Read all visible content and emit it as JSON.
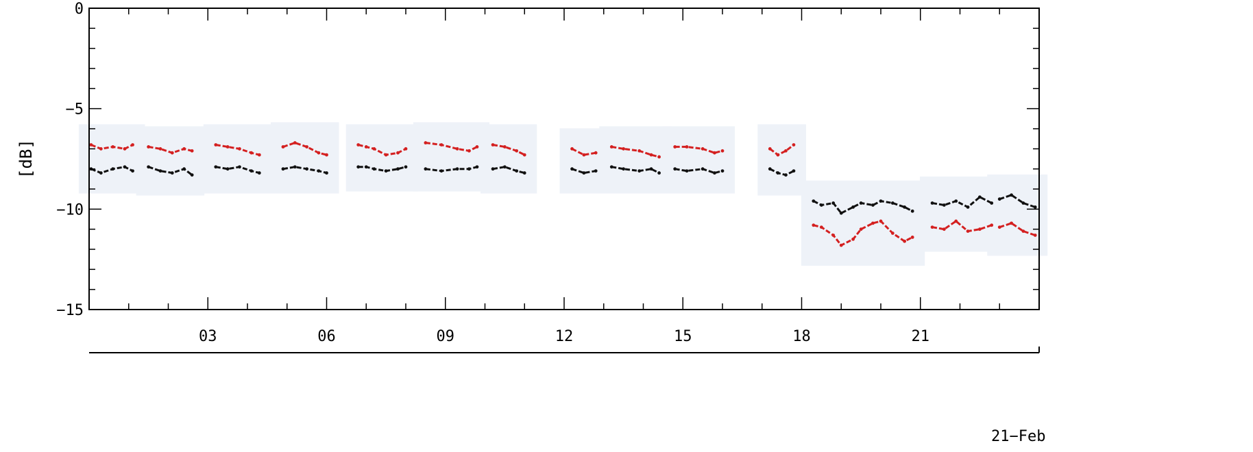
{
  "chart_data": {
    "type": "scatter",
    "title": "",
    "xlabel": "",
    "ylabel": "[dB]",
    "date_label": "21−Feb",
    "xlim": [
      0,
      24
    ],
    "ylim": [
      -15,
      0
    ],
    "x_ticks": [
      {
        "x": 3,
        "label": "03"
      },
      {
        "x": 6,
        "label": "06"
      },
      {
        "x": 9,
        "label": "09"
      },
      {
        "x": 12,
        "label": "12"
      },
      {
        "x": 15,
        "label": "15"
      },
      {
        "x": 18,
        "label": "18"
      },
      {
        "x": 21,
        "label": "21"
      }
    ],
    "y_ticks": [
      {
        "y": 0,
        "label": "0"
      },
      {
        "y": -5,
        "label": "−5"
      },
      {
        "y": -10,
        "label": "−10"
      },
      {
        "y": -15,
        "label": "−15"
      }
    ],
    "grid": false,
    "colors": {
      "red": "#d42020",
      "black": "#111111"
    },
    "series": [
      {
        "color": "#d42020",
        "segments": [
          {
            "x": [
              0.05,
              0.3,
              0.6,
              0.9,
              1.1
            ],
            "y": [
              -6.8,
              -7.0,
              -6.9,
              -7.0,
              -6.8
            ]
          },
          {
            "x": [
              1.5,
              1.8,
              2.1,
              2.4,
              2.6
            ],
            "y": [
              -6.9,
              -7.0,
              -7.2,
              -7.0,
              -7.1
            ]
          },
          {
            "x": [
              3.2,
              3.5,
              3.8,
              4.1,
              4.3
            ],
            "y": [
              -6.8,
              -6.9,
              -7.0,
              -7.2,
              -7.3
            ]
          },
          {
            "x": [
              4.9,
              5.2,
              5.5,
              5.8,
              6.0
            ],
            "y": [
              -6.9,
              -6.7,
              -6.9,
              -7.2,
              -7.3
            ]
          },
          {
            "x": [
              6.8,
              7.0,
              7.2,
              7.5,
              7.8,
              8.0
            ],
            "y": [
              -6.8,
              -6.9,
              -7.0,
              -7.3,
              -7.2,
              -7.0
            ]
          },
          {
            "x": [
              8.5,
              8.9,
              9.3,
              9.6,
              9.8
            ],
            "y": [
              -6.7,
              -6.8,
              -7.0,
              -7.1,
              -6.9
            ]
          },
          {
            "x": [
              10.2,
              10.5,
              10.8,
              11.0
            ],
            "y": [
              -6.8,
              -6.9,
              -7.1,
              -7.3
            ]
          },
          {
            "x": [
              12.2,
              12.5,
              12.8
            ],
            "y": [
              -7.0,
              -7.3,
              -7.2
            ]
          },
          {
            "x": [
              13.2,
              13.5,
              13.9,
              14.2,
              14.4
            ],
            "y": [
              -6.9,
              -7.0,
              -7.1,
              -7.3,
              -7.4
            ]
          },
          {
            "x": [
              14.8,
              15.1,
              15.5,
              15.8,
              16.0
            ],
            "y": [
              -6.9,
              -6.9,
              -7.0,
              -7.2,
              -7.1
            ]
          },
          {
            "x": [
              17.2,
              17.4,
              17.6,
              17.8
            ],
            "y": [
              -7.0,
              -7.3,
              -7.1,
              -6.8
            ]
          },
          {
            "x": [
              18.3,
              18.5,
              18.8,
              19.0,
              19.3,
              19.5,
              19.8,
              20.0,
              20.3,
              20.6,
              20.8
            ],
            "y": [
              -10.8,
              -10.9,
              -11.3,
              -11.8,
              -11.5,
              -11.0,
              -10.7,
              -10.6,
              -11.2,
              -11.6,
              -11.4
            ]
          },
          {
            "x": [
              21.3,
              21.6,
              21.9,
              22.2,
              22.5,
              22.8
            ],
            "y": [
              -10.9,
              -11.0,
              -10.6,
              -11.1,
              -11.0,
              -10.8
            ]
          },
          {
            "x": [
              23.0,
              23.3,
              23.6,
              23.9
            ],
            "y": [
              -10.9,
              -10.7,
              -11.1,
              -11.3
            ]
          }
        ]
      },
      {
        "color": "#111111",
        "segments": [
          {
            "x": [
              0.05,
              0.3,
              0.6,
              0.9,
              1.1
            ],
            "y": [
              -8.0,
              -8.2,
              -8.0,
              -7.9,
              -8.1
            ]
          },
          {
            "x": [
              1.5,
              1.8,
              2.1,
              2.4,
              2.6
            ],
            "y": [
              -7.9,
              -8.1,
              -8.2,
              -8.0,
              -8.3
            ]
          },
          {
            "x": [
              3.2,
              3.5,
              3.8,
              4.1,
              4.3
            ],
            "y": [
              -7.9,
              -8.0,
              -7.9,
              -8.1,
              -8.2
            ]
          },
          {
            "x": [
              4.9,
              5.2,
              5.5,
              5.8,
              6.0
            ],
            "y": [
              -8.0,
              -7.9,
              -8.0,
              -8.1,
              -8.2
            ]
          },
          {
            "x": [
              6.8,
              7.0,
              7.2,
              7.5,
              7.8,
              8.0
            ],
            "y": [
              -7.9,
              -7.9,
              -8.0,
              -8.1,
              -8.0,
              -7.9
            ]
          },
          {
            "x": [
              8.5,
              8.9,
              9.3,
              9.6,
              9.8
            ],
            "y": [
              -8.0,
              -8.1,
              -8.0,
              -8.0,
              -7.9
            ]
          },
          {
            "x": [
              10.2,
              10.5,
              10.8,
              11.0
            ],
            "y": [
              -8.0,
              -7.9,
              -8.1,
              -8.2
            ]
          },
          {
            "x": [
              12.2,
              12.5,
              12.8
            ],
            "y": [
              -8.0,
              -8.2,
              -8.1
            ]
          },
          {
            "x": [
              13.2,
              13.5,
              13.9,
              14.2,
              14.4
            ],
            "y": [
              -7.9,
              -8.0,
              -8.1,
              -8.0,
              -8.2
            ]
          },
          {
            "x": [
              14.8,
              15.1,
              15.5,
              15.8,
              16.0
            ],
            "y": [
              -8.0,
              -8.1,
              -8.0,
              -8.2,
              -8.1
            ]
          },
          {
            "x": [
              17.2,
              17.4,
              17.6,
              17.8
            ],
            "y": [
              -8.0,
              -8.2,
              -8.3,
              -8.1
            ]
          },
          {
            "x": [
              18.3,
              18.5,
              18.8,
              19.0,
              19.3,
              19.5,
              19.8,
              20.0,
              20.3,
              20.6,
              20.8
            ],
            "y": [
              -9.6,
              -9.8,
              -9.7,
              -10.2,
              -9.9,
              -9.7,
              -9.8,
              -9.6,
              -9.7,
              -9.9,
              -10.1
            ]
          },
          {
            "x": [
              21.3,
              21.6,
              21.9,
              22.2,
              22.5,
              22.8
            ],
            "y": [
              -9.7,
              -9.8,
              -9.6,
              -9.9,
              -9.4,
              -9.7
            ]
          },
          {
            "x": [
              23.0,
              23.3,
              23.6,
              23.9
            ],
            "y": [
              -9.5,
              -9.3,
              -9.7,
              -9.9
            ]
          }
        ]
      }
    ]
  }
}
